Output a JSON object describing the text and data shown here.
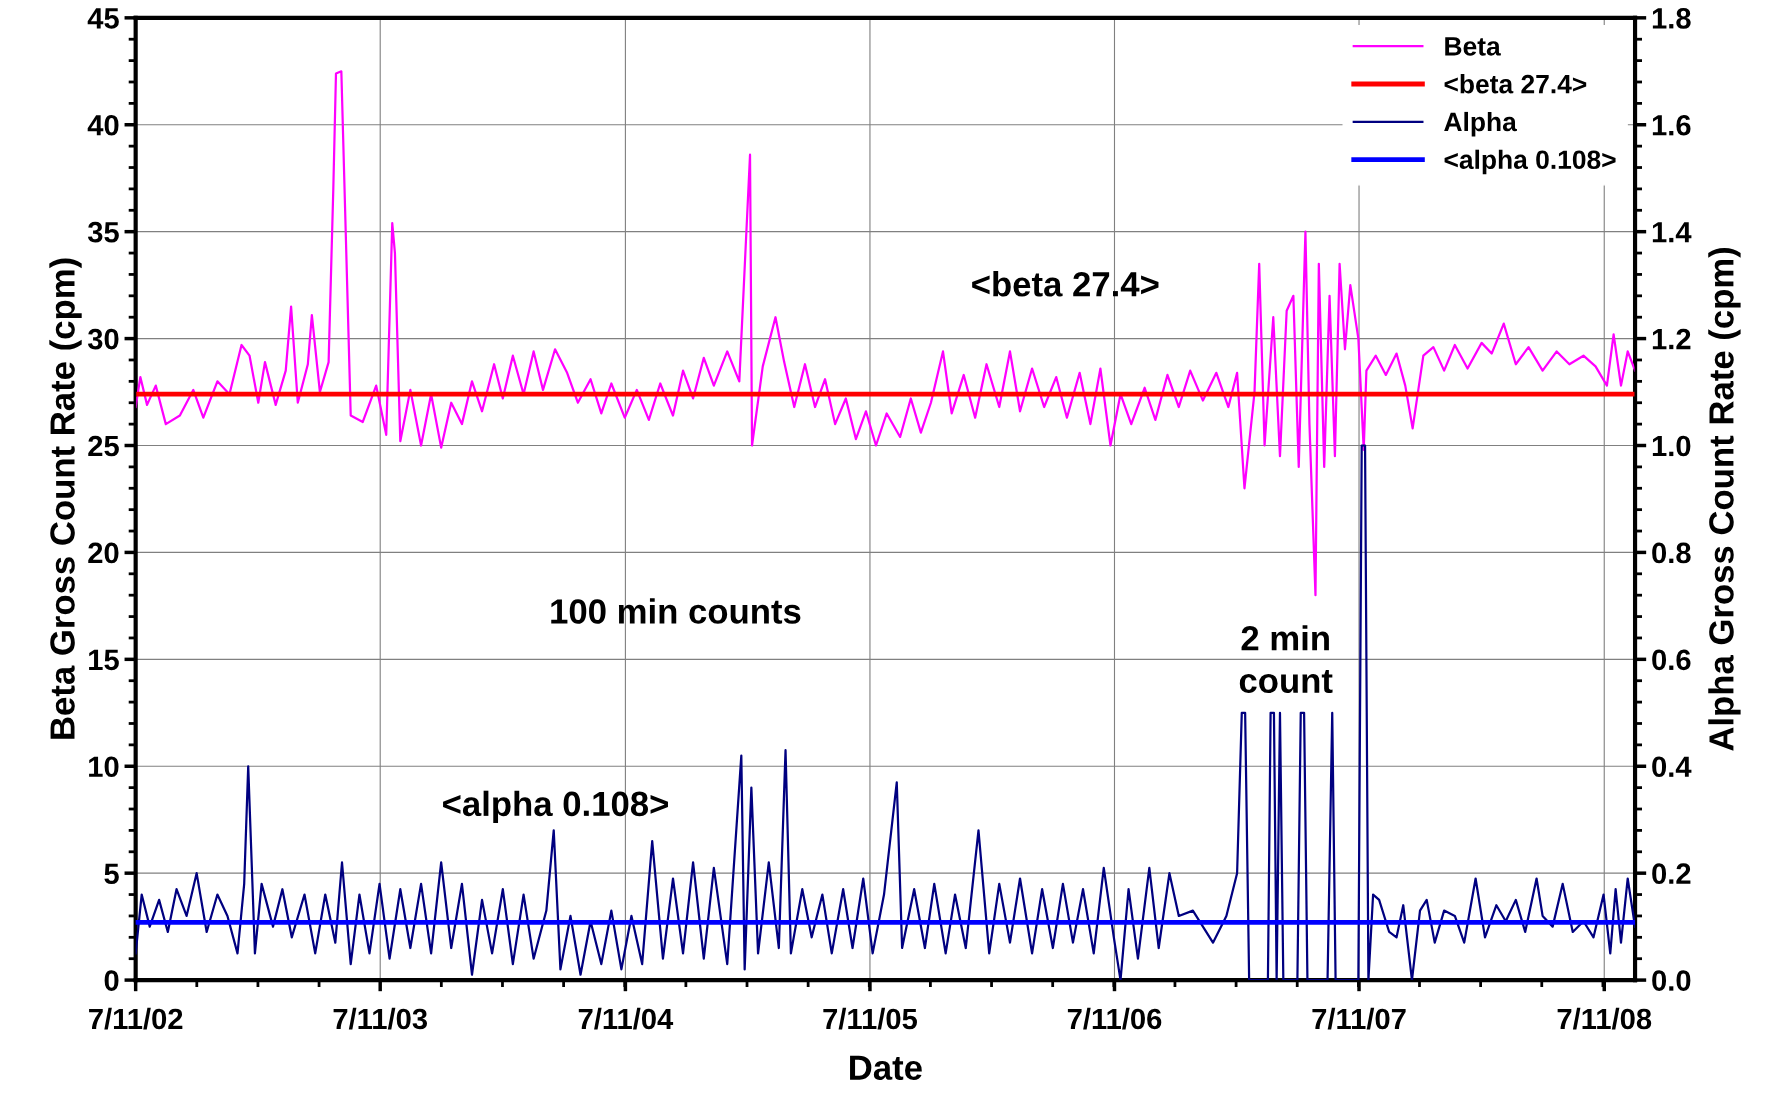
{
  "chart_data": {
    "type": "line",
    "xlabel": "Date",
    "ylabel": "Beta Gross Count Rate (cpm)",
    "y2label": "Alpha Gross Count Rate (cpm)",
    "xlim": [
      "2002-07-11",
      "2008-08-26"
    ],
    "xticks": [
      {
        "value": "2002-07-11",
        "label": "7/11/02"
      },
      {
        "value": "2003-07-11",
        "label": "7/11/03"
      },
      {
        "value": "2004-07-11",
        "label": "7/11/04"
      },
      {
        "value": "2005-07-11",
        "label": "7/11/05"
      },
      {
        "value": "2006-07-11",
        "label": "7/11/06"
      },
      {
        "value": "2007-07-11",
        "label": "7/11/07"
      },
      {
        "value": "2008-07-11",
        "label": "7/11/08"
      }
    ],
    "ylim": [
      0,
      45
    ],
    "yticks": [
      0,
      5,
      10,
      15,
      20,
      25,
      30,
      35,
      40,
      45
    ],
    "y2lim": [
      0,
      1.8
    ],
    "y2ticks": [
      {
        "value": 0,
        "label": "0.0"
      },
      {
        "value": 0.2,
        "label": "0.2"
      },
      {
        "value": 0.4,
        "label": "0.4"
      },
      {
        "value": 0.6,
        "label": "0.6"
      },
      {
        "value": 0.8,
        "label": "0.8"
      },
      {
        "value": 1.0,
        "label": "1.0"
      },
      {
        "value": 1.2,
        "label": "1.2"
      },
      {
        "value": 1.4,
        "label": "1.4"
      },
      {
        "value": 1.6,
        "label": "1.6"
      },
      {
        "value": 1.8,
        "label": "1.8"
      }
    ],
    "grid": true,
    "legend": "top right",
    "ref_lines": [
      {
        "axis": "y",
        "value": 27.4,
        "label": "<beta 27.4>",
        "color": "#ff0000"
      },
      {
        "axis": "y2",
        "value": 0.108,
        "label": "<alpha 0.108>",
        "color": "#0000ff"
      }
    ],
    "annotations": [
      "<beta 27.4>",
      "100 min counts",
      "<alpha 0.108>",
      "2 min\ncount"
    ],
    "series": [
      {
        "name": "Beta",
        "color": "#ff00ff",
        "x": [
          "2002-07-11",
          "2002-07-18",
          "2002-07-28",
          "2002-08-10",
          "2002-08-25",
          "2002-09-15",
          "2002-10-05",
          "2002-10-20",
          "2002-11-10",
          "2002-11-28",
          "2002-12-16",
          "2002-12-28",
          "2003-01-10",
          "2003-01-20",
          "2003-02-05",
          "2003-02-20",
          "2003-02-28",
          "2003-03-10",
          "2003-03-25",
          "2003-03-31",
          "2003-04-12",
          "2003-04-25",
          "2003-05-02",
          "2003-05-06",
          "2003-05-14",
          "2003-05-28",
          "2003-06-15",
          "2003-07-05",
          "2003-07-20",
          "2003-07-29",
          "2003-08-02",
          "2003-08-10",
          "2003-08-25",
          "2003-09-10",
          "2003-09-25",
          "2003-10-10",
          "2003-10-25",
          "2003-11-10",
          "2003-11-25",
          "2003-12-10",
          "2003-12-28",
          "2004-01-10",
          "2004-01-25",
          "2004-02-10",
          "2004-02-25",
          "2004-03-10",
          "2004-03-28",
          "2004-04-15",
          "2004-05-01",
          "2004-05-20",
          "2004-06-05",
          "2004-06-20",
          "2004-07-10",
          "2004-07-28",
          "2004-08-15",
          "2004-09-01",
          "2004-09-20",
          "2004-10-05",
          "2004-10-20",
          "2004-11-05",
          "2004-11-20",
          "2004-12-10",
          "2004-12-28",
          "2005-01-13",
          "2005-01-16",
          "2005-02-01",
          "2005-02-20",
          "2005-03-05",
          "2005-03-20",
          "2005-04-05",
          "2005-04-20",
          "2005-05-05",
          "2005-05-20",
          "2005-06-05",
          "2005-06-20",
          "2005-07-05",
          "2005-07-20",
          "2005-08-05",
          "2005-08-25",
          "2005-09-10",
          "2005-09-25",
          "2005-10-10",
          "2005-10-28",
          "2005-11-10",
          "2005-11-28",
          "2005-12-15",
          "2006-01-01",
          "2006-01-20",
          "2006-02-05",
          "2006-02-20",
          "2006-03-10",
          "2006-03-28",
          "2006-04-15",
          "2006-05-01",
          "2006-05-20",
          "2006-06-05",
          "2006-06-20",
          "2006-07-05",
          "2006-07-20",
          "2006-08-05",
          "2006-08-25",
          "2006-09-10",
          "2006-09-28",
          "2006-10-15",
          "2006-11-01",
          "2006-11-20",
          "2006-12-10",
          "2006-12-28",
          "2007-01-10",
          "2007-01-21",
          "2007-02-05",
          "2007-02-12",
          "2007-02-20",
          "2007-03-05",
          "2007-03-15",
          "2007-03-25",
          "2007-04-04",
          "2007-04-12",
          "2007-04-22",
          "2007-04-28",
          "2007-05-07",
          "2007-05-12",
          "2007-05-20",
          "2007-05-28",
          "2007-06-05",
          "2007-06-12",
          "2007-06-20",
          "2007-06-28",
          "2007-07-10",
          "2007-07-18",
          "2007-07-22",
          "2007-08-05",
          "2007-08-20",
          "2007-09-05",
          "2007-09-18",
          "2007-09-29",
          "2007-10-15",
          "2007-10-30",
          "2007-11-15",
          "2007-12-01",
          "2007-12-20",
          "2008-01-10",
          "2008-01-25",
          "2008-02-12",
          "2008-03-01",
          "2008-03-20",
          "2008-04-10",
          "2008-05-01",
          "2008-05-20",
          "2008-06-10",
          "2008-06-28",
          "2008-07-15",
          "2008-07-25",
          "2008-08-05",
          "2008-08-15",
          "2008-08-26"
        ],
        "values": [
          26.8,
          28.2,
          26.9,
          27.8,
          26.0,
          26.4,
          27.6,
          26.3,
          28.0,
          27.4,
          29.7,
          29.2,
          27.0,
          28.9,
          26.9,
          28.5,
          31.5,
          27.0,
          28.8,
          31.1,
          27.5,
          28.9,
          37.0,
          42.4,
          42.5,
          26.4,
          26.1,
          27.8,
          25.5,
          35.4,
          34.0,
          25.2,
          27.6,
          25.0,
          27.4,
          24.9,
          27.0,
          26.0,
          28.0,
          26.6,
          28.8,
          27.2,
          29.2,
          27.4,
          29.4,
          27.6,
          29.5,
          28.4,
          27.0,
          28.1,
          26.5,
          27.9,
          26.3,
          27.6,
          26.2,
          27.9,
          26.4,
          28.5,
          27.2,
          29.1,
          27.8,
          29.4,
          28.0,
          38.6,
          25.0,
          28.7,
          31.0,
          28.9,
          26.8,
          28.8,
          26.8,
          28.1,
          26.0,
          27.2,
          25.3,
          26.6,
          25.0,
          26.5,
          25.4,
          27.2,
          25.6,
          27.0,
          29.4,
          26.5,
          28.3,
          26.3,
          28.8,
          26.8,
          29.4,
          26.6,
          28.6,
          26.8,
          28.2,
          26.3,
          28.4,
          26.0,
          28.6,
          25.0,
          27.4,
          26.0,
          27.7,
          26.2,
          28.3,
          26.8,
          28.5,
          27.1,
          28.4,
          26.8,
          28.4,
          23.0,
          27.5,
          33.5,
          25.0,
          31.0,
          24.5,
          31.3,
          32.0,
          24.0,
          35.0,
          26.0,
          18.0,
          33.5,
          24.0,
          32.0,
          24.5,
          33.5,
          29.5,
          32.5,
          30.0,
          24.8,
          28.5,
          29.2,
          28.3,
          29.3,
          27.8,
          25.8,
          29.2,
          29.6,
          28.5,
          29.7,
          28.6,
          29.8,
          29.3,
          30.7,
          28.8,
          29.6,
          28.5,
          29.4,
          28.8,
          29.2,
          28.7,
          27.8,
          30.2,
          27.8,
          29.4,
          28.5
        ]
      },
      {
        "name": "Alpha",
        "color": "#000080",
        "axis": "y2",
        "x": [
          "2002-07-11",
          "2002-07-20",
          "2002-08-01",
          "2002-08-15",
          "2002-08-28",
          "2002-09-10",
          "2002-09-25",
          "2002-10-10",
          "2002-10-25",
          "2002-11-10",
          "2002-11-25",
          "2002-12-10",
          "2002-12-20",
          "2002-12-26",
          "2003-01-05",
          "2003-01-15",
          "2003-02-01",
          "2003-02-15",
          "2003-03-01",
          "2003-03-20",
          "2003-04-05",
          "2003-04-20",
          "2003-05-05",
          "2003-05-15",
          "2003-05-28",
          "2003-06-10",
          "2003-06-25",
          "2003-07-10",
          "2003-07-25",
          "2003-08-10",
          "2003-08-25",
          "2003-09-10",
          "2003-09-25",
          "2003-10-10",
          "2003-10-25",
          "2003-11-10",
          "2003-11-25",
          "2003-12-10",
          "2003-12-25",
          "2004-01-10",
          "2004-01-25",
          "2004-02-10",
          "2004-02-25",
          "2004-03-15",
          "2004-03-26",
          "2004-04-05",
          "2004-04-20",
          "2004-05-05",
          "2004-05-20",
          "2004-06-05",
          "2004-06-20",
          "2004-07-05",
          "2004-07-20",
          "2004-08-05",
          "2004-08-20",
          "2004-09-05",
          "2004-09-20",
          "2004-10-05",
          "2004-10-20",
          "2004-11-05",
          "2004-11-20",
          "2004-12-10",
          "2004-12-31",
          "2005-01-05",
          "2005-01-15",
          "2005-01-25",
          "2005-02-10",
          "2005-02-25",
          "2005-03-07",
          "2005-03-15",
          "2005-04-01",
          "2005-04-15",
          "2005-05-01",
          "2005-05-15",
          "2005-06-01",
          "2005-06-15",
          "2005-07-01",
          "2005-07-15",
          "2005-08-01",
          "2005-08-20",
          "2005-08-28",
          "2005-09-15",
          "2005-10-01",
          "2005-10-15",
          "2005-11-01",
          "2005-11-15",
          "2005-12-01",
          "2005-12-20",
          "2006-01-05",
          "2006-01-20",
          "2006-02-05",
          "2006-02-20",
          "2006-03-10",
          "2006-03-25",
          "2006-04-10",
          "2006-04-25",
          "2006-05-10",
          "2006-05-25",
          "2006-06-10",
          "2006-06-25",
          "2006-07-10",
          "2006-07-20",
          "2006-08-01",
          "2006-08-15",
          "2006-09-01",
          "2006-09-15",
          "2006-10-01",
          "2006-10-15",
          "2006-11-05",
          "2006-11-20",
          "2006-12-05",
          "2006-12-25",
          "2007-01-10",
          "2007-01-17",
          "2007-01-22",
          "2007-01-28",
          "2007-02-25",
          "2007-03-01",
          "2007-03-06",
          "2007-03-10",
          "2007-03-15",
          "2007-03-20",
          "2007-04-10",
          "2007-04-15",
          "2007-04-20",
          "2007-04-25",
          "2007-05-25",
          "2007-06-01",
          "2007-06-06",
          "2007-07-10",
          "2007-07-15",
          "2007-07-20",
          "2007-07-25",
          "2007-08-01",
          "2007-08-10",
          "2007-08-25",
          "2007-09-05",
          "2007-09-15",
          "2007-09-28",
          "2007-10-10",
          "2007-10-20",
          "2007-11-01",
          "2007-11-15",
          "2007-12-01",
          "2007-12-15",
          "2008-01-01",
          "2008-01-15",
          "2008-02-01",
          "2008-02-15",
          "2008-03-01",
          "2008-03-15",
          "2008-04-01",
          "2008-04-10",
          "2008-04-25",
          "2008-05-10",
          "2008-05-25",
          "2008-06-10",
          "2008-06-25",
          "2008-07-10",
          "2008-07-20",
          "2008-07-28",
          "2008-08-05",
          "2008-08-15",
          "2008-08-26"
        ],
        "values": [
          0.05,
          0.16,
          0.1,
          0.15,
          0.09,
          0.17,
          0.12,
          0.2,
          0.09,
          0.16,
          0.12,
          0.05,
          0.18,
          0.4,
          0.05,
          0.18,
          0.1,
          0.17,
          0.08,
          0.16,
          0.05,
          0.16,
          0.07,
          0.22,
          0.03,
          0.16,
          0.05,
          0.18,
          0.04,
          0.17,
          0.06,
          0.18,
          0.05,
          0.22,
          0.06,
          0.18,
          0.01,
          0.15,
          0.05,
          0.17,
          0.03,
          0.16,
          0.04,
          0.13,
          0.28,
          0.02,
          0.12,
          0.01,
          0.11,
          0.03,
          0.13,
          0.02,
          0.12,
          0.03,
          0.26,
          0.04,
          0.19,
          0.05,
          0.22,
          0.04,
          0.21,
          0.03,
          0.42,
          0.02,
          0.36,
          0.05,
          0.22,
          0.06,
          0.43,
          0.05,
          0.17,
          0.08,
          0.16,
          0.05,
          0.17,
          0.06,
          0.19,
          0.05,
          0.16,
          0.37,
          0.06,
          0.17,
          0.06,
          0.18,
          0.05,
          0.16,
          0.06,
          0.28,
          0.05,
          0.18,
          0.07,
          0.19,
          0.05,
          0.17,
          0.06,
          0.18,
          0.07,
          0.17,
          0.05,
          0.21,
          0.08,
          0.0,
          0.17,
          0.04,
          0.21,
          0.06,
          0.2,
          0.12,
          0.13,
          0.1,
          0.07,
          0.12,
          0.2,
          0.5,
          0.5,
          0.0,
          0.0,
          0.5,
          0.5,
          0.0,
          0.5,
          0.0,
          0.0,
          0.5,
          0.5,
          0.0,
          0.0,
          0.5,
          0.0,
          0.0,
          1.0,
          1.0,
          0.0,
          0.16,
          0.15,
          0.09,
          0.08,
          0.14,
          0.0,
          0.13,
          0.15,
          0.07,
          0.13,
          0.12,
          0.07,
          0.19,
          0.08,
          0.14,
          0.11,
          0.15,
          0.09,
          0.19,
          0.12,
          0.1,
          0.18,
          0.09,
          0.11,
          0.08,
          0.16,
          0.05,
          0.17,
          0.07,
          0.19,
          0.1
        ]
      }
    ]
  }
}
